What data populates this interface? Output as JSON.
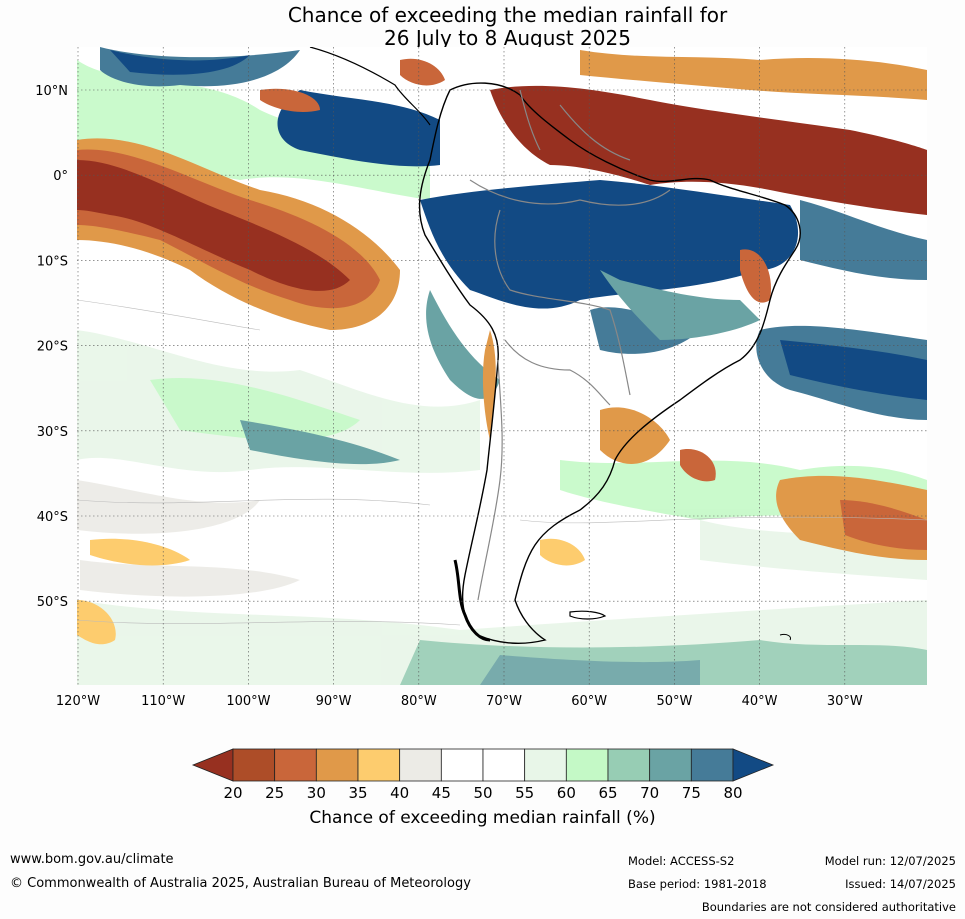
{
  "title": {
    "line1": "Chance of exceeding the median rainfall for",
    "line2": "26 July to 8 August 2025"
  },
  "map": {
    "lat_labels": [
      "10°N",
      "0°",
      "10°S",
      "20°S",
      "30°S",
      "40°S",
      "50°S"
    ],
    "lon_labels": [
      "120°W",
      "110°W",
      "100°W",
      "90°W",
      "80°W",
      "70°W",
      "60°W",
      "50°W",
      "40°W",
      "30°W"
    ],
    "colors": {
      "ocean_bg": "#ffffff",
      "coast": "#000000",
      "border": "#888888"
    }
  },
  "colorbar": {
    "ticks": [
      "20",
      "25",
      "30",
      "35",
      "40",
      "45",
      "50",
      "55",
      "60",
      "65",
      "70",
      "75",
      "80"
    ],
    "colors": [
      "#973020",
      "#ad4d28",
      "#c9663a",
      "#e09949",
      "#fdcc6e",
      "#ecebe6",
      "#ffffff",
      "#ffffff",
      "#e8f6e8",
      "#c4f9c6",
      "#97cdb4",
      "#6aa3a4",
      "#457b98",
      "#124a84"
    ],
    "title": "Chance of exceeding median rainfall (%)"
  },
  "footer": {
    "url": "www.bom.gov.au/climate",
    "copyright": "© Commonwealth of Australia 2025, Australian Bureau of Meteorology",
    "model": "Model: ACCESS-S2",
    "base_period": "Base period: 1981-2018",
    "model_run": "Model run: 12/07/2025",
    "issued": "Issued: 14/07/2025",
    "disclaimer": "Boundaries are not considered authoritative"
  }
}
